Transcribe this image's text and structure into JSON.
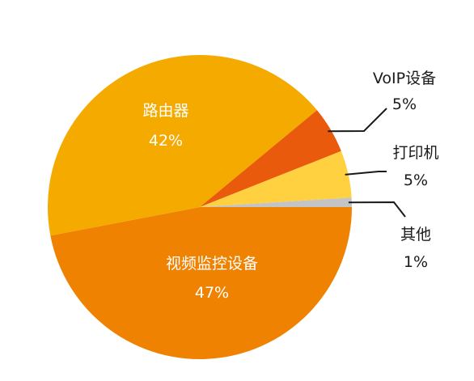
{
  "chart_data": {
    "type": "pie",
    "title": "",
    "slices": [
      {
        "label": "视频监控设备",
        "value": 47,
        "value_label": "47%",
        "color": "#ef8200",
        "label_placement": "inside"
      },
      {
        "label": "路由器",
        "value": 42,
        "value_label": "42%",
        "color": "#f5aa00",
        "label_placement": "inside"
      },
      {
        "label": "VoIP设备",
        "value": 5,
        "value_label": "5%",
        "color": "#e95a0c",
        "label_placement": "outside"
      },
      {
        "label": "打印机",
        "value": 5,
        "value_label": "5%",
        "color": "#ffd040",
        "label_placement": "outside"
      },
      {
        "label": "其他",
        "value": 1,
        "value_label": "1%",
        "color": "#c4c4c4",
        "label_placement": "outside"
      }
    ]
  }
}
